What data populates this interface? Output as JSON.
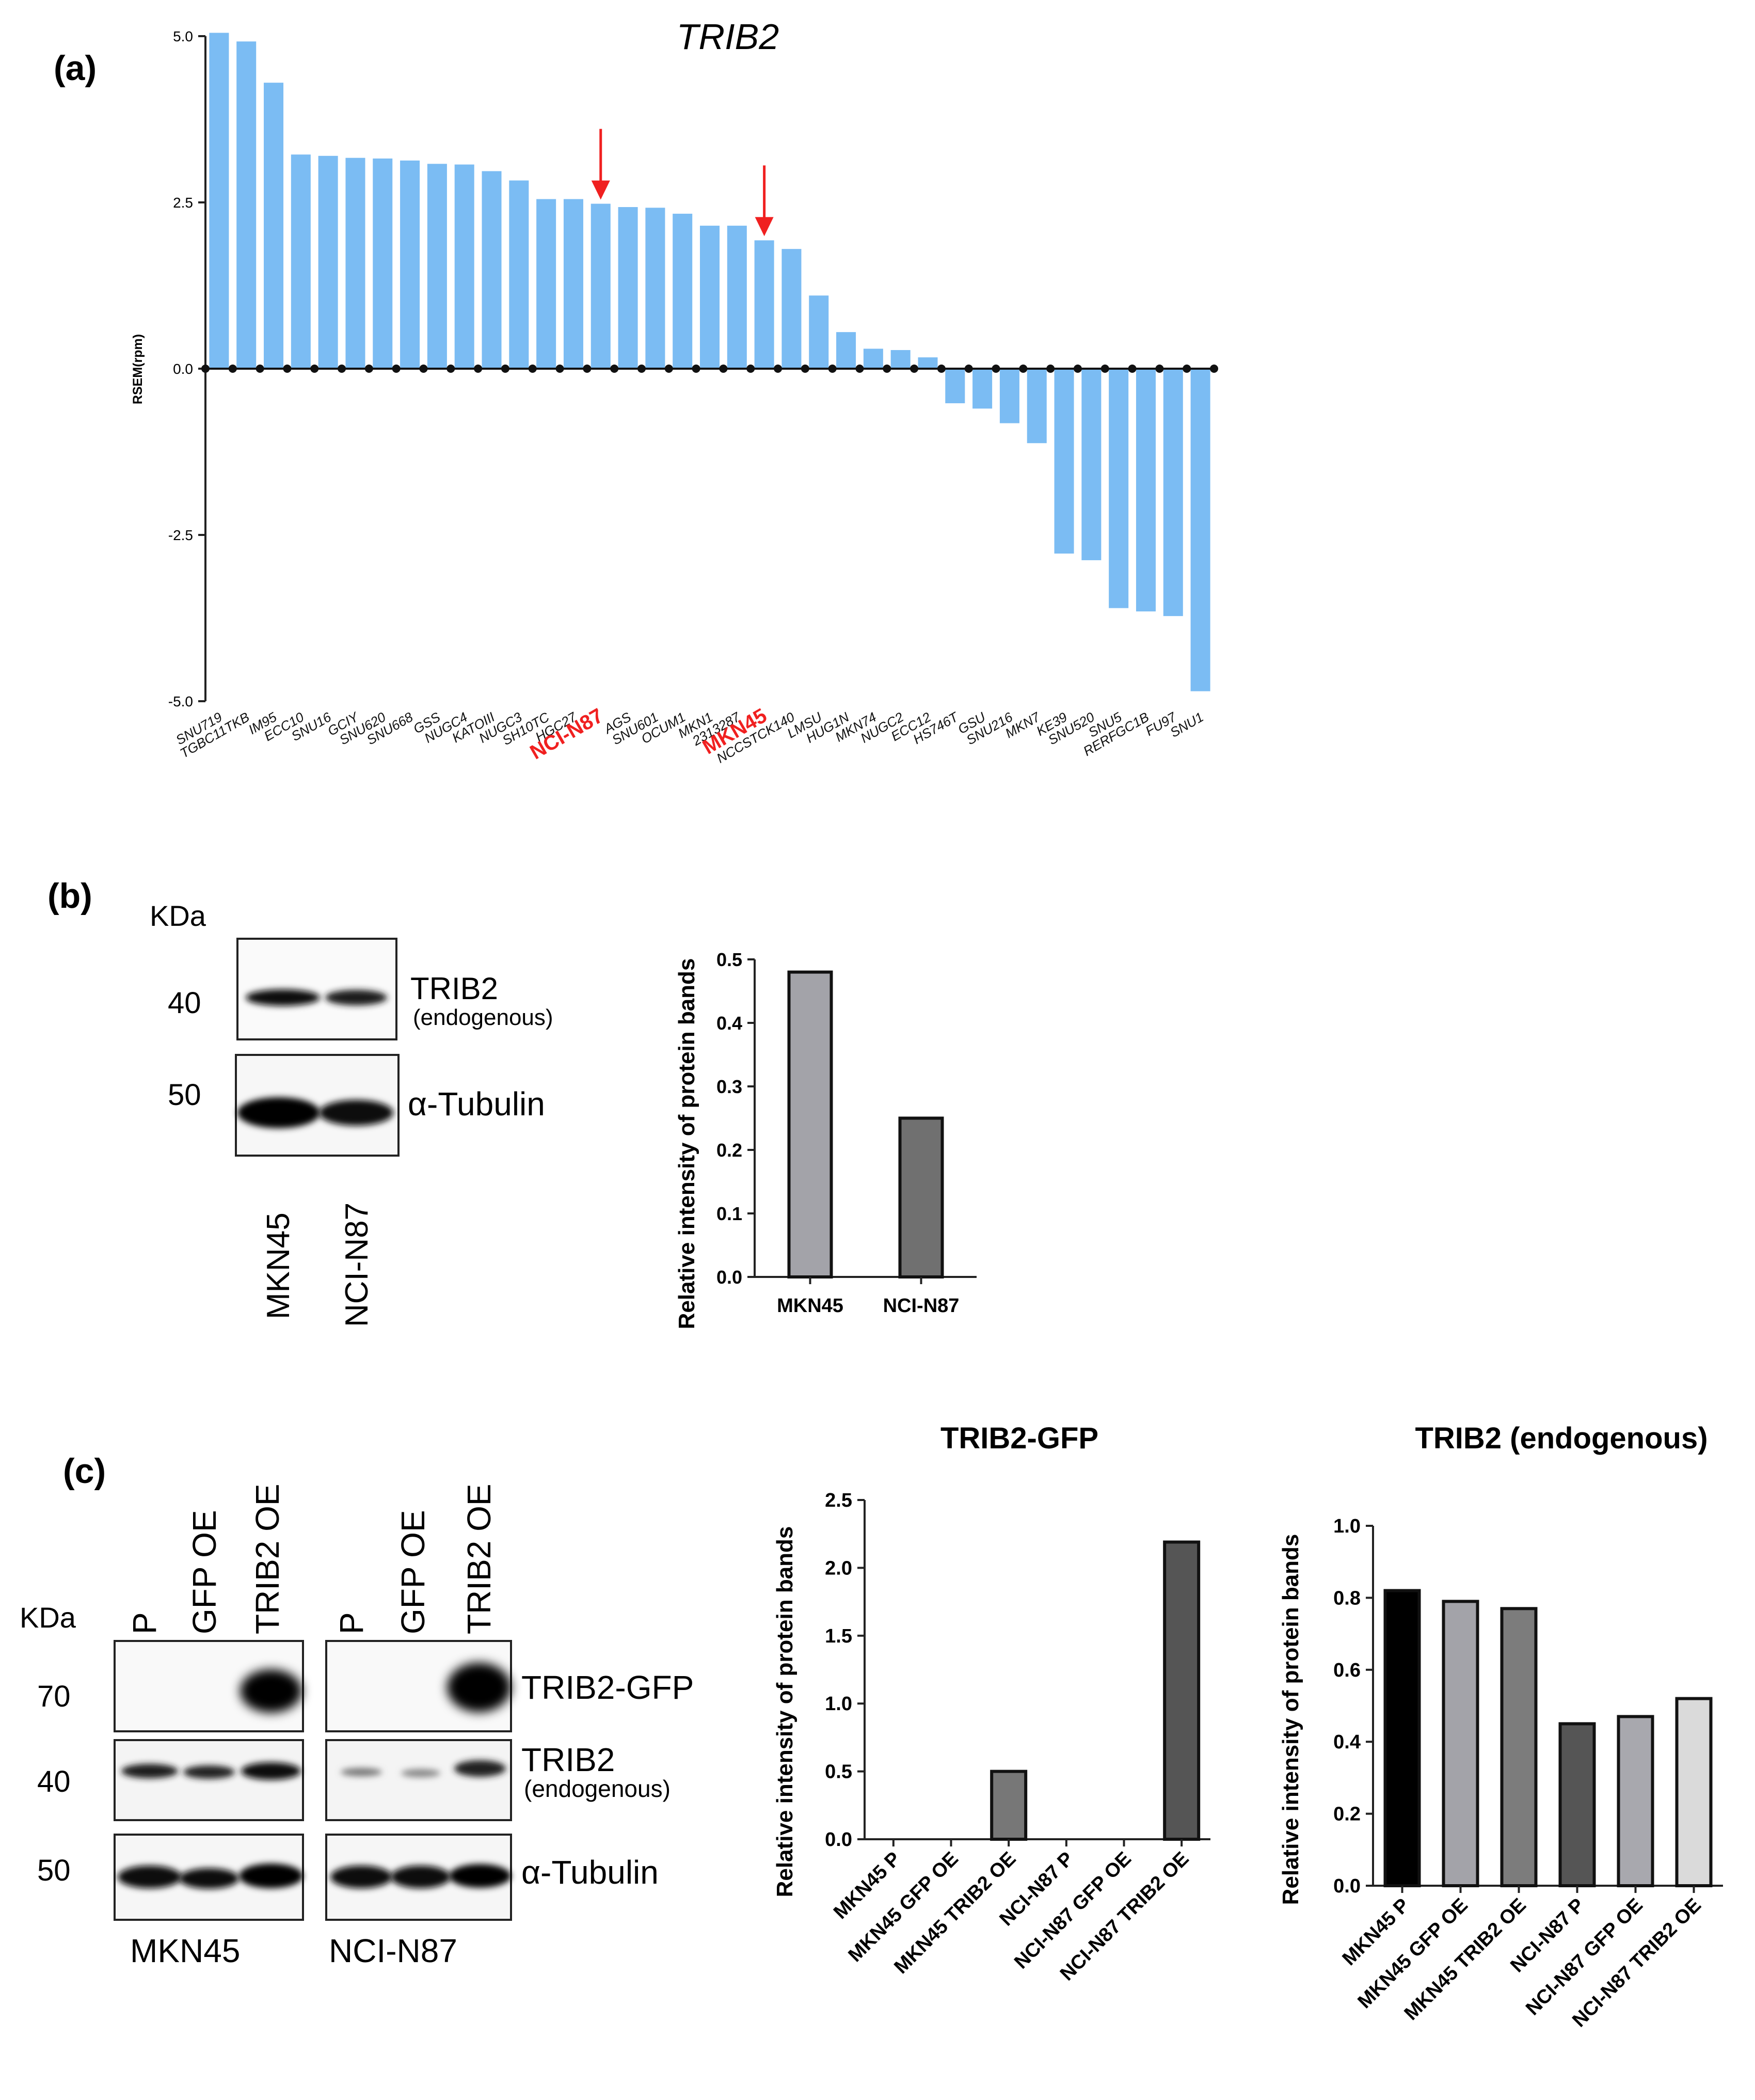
{
  "panels": {
    "a": "(a)",
    "b": "(b)",
    "c": "(c)"
  },
  "chart_data": [
    {
      "id": "chartA",
      "type": "bar",
      "title": "TRIB2",
      "xlabel": "",
      "ylabel": "RSEM(rpm)",
      "ylim": [
        -5.0,
        5.0
      ],
      "yticks": [
        "5.0",
        "2.5",
        "0.0",
        "-2.5",
        "-5.0"
      ],
      "ytick_values": [
        5.0,
        2.5,
        0.0,
        -2.5,
        -5.0
      ],
      "bar_color": "#7bbcf3",
      "highlight_color": "#f02020",
      "highlighted": [
        "NCI-N87",
        "MKN45"
      ],
      "categories": [
        "SNU719",
        "TGBC11TKB",
        "IM95",
        "ECC10",
        "SNU16",
        "GCIY",
        "SNU620",
        "SNU668",
        "GSS",
        "NUGC4",
        "KATOIII",
        "NUGC3",
        "SH10TC",
        "HGC27",
        "NCI-N87",
        "AGS",
        "SNU601",
        "OCUM1",
        "MKN1",
        "2313287",
        "MKN45",
        "NCCSTCK140",
        "LMSU",
        "HUG1N",
        "MKN74",
        "NUGC2",
        "ECC12",
        "HS746T",
        "GSU",
        "SNU216",
        "MKN7",
        "KE39",
        "SNU520",
        "SNU5",
        "RERFGC1B",
        "FU97",
        "SNU1"
      ],
      "values": [
        5.05,
        4.92,
        4.3,
        3.22,
        3.2,
        3.17,
        3.16,
        3.13,
        3.08,
        3.07,
        2.97,
        2.83,
        2.55,
        2.55,
        2.48,
        2.43,
        2.42,
        2.33,
        2.15,
        2.15,
        1.93,
        1.8,
        1.1,
        0.55,
        0.3,
        0.28,
        0.17,
        -0.52,
        -0.6,
        -0.82,
        -1.12,
        -2.78,
        -2.88,
        -3.6,
        -3.65,
        -3.72,
        -4.85
      ]
    },
    {
      "id": "chartB",
      "type": "bar",
      "title": "",
      "xlabel": "",
      "ylabel": "Relative intensity of protein bands",
      "ylim": [
        0,
        0.5
      ],
      "yticks": [
        "0.0",
        "0.1",
        "0.2",
        "0.3",
        "0.4",
        "0.5"
      ],
      "ytick_values": [
        0,
        0.1,
        0.2,
        0.3,
        0.4,
        0.5
      ],
      "categories": [
        "MKN45",
        "NCI-N87"
      ],
      "values": [
        0.48,
        0.25
      ],
      "colors": [
        "#a3a3a9",
        "#707070"
      ]
    },
    {
      "id": "chartC1",
      "type": "bar",
      "title": "TRIB2-GFP",
      "xlabel": "",
      "ylabel": "Relative intensity of protein bands",
      "ylim": [
        0,
        2.5
      ],
      "yticks": [
        "0.0",
        "0.5",
        "1.0",
        "1.5",
        "2.0",
        "2.5"
      ],
      "ytick_values": [
        0,
        0.5,
        1.0,
        1.5,
        2.0,
        2.5
      ],
      "categories": [
        "MKN45 P",
        "MKN45 GFP OE",
        "MKN45 TRIB2 OE",
        "NCI-N87 P",
        "NCI-N87 GFP OE",
        "NCI-N87 TRIB2 OE"
      ],
      "values": [
        0,
        0,
        0.5,
        0,
        0,
        2.19
      ],
      "colors": [
        "#777777",
        "#777777",
        "#777777",
        "#555555",
        "#555555",
        "#555555"
      ]
    },
    {
      "id": "chartC2",
      "type": "bar",
      "title": "TRIB2 (endogenous)",
      "xlabel": "",
      "ylabel": "Relative intensity of protein bands",
      "ylim": [
        0,
        1.0
      ],
      "yticks": [
        "0.0",
        "0.2",
        "0.4",
        "0.6",
        "0.8",
        "1.0"
      ],
      "ytick_values": [
        0,
        0.2,
        0.4,
        0.6,
        0.8,
        1.0
      ],
      "categories": [
        "MKN45 P",
        "MKN45 GFP OE",
        "MKN45 TRIB2 OE",
        "NCI-N87 P",
        "NCI-N87 GFP OE",
        "NCI-N87 TRIB2 OE"
      ],
      "values": [
        0.82,
        0.79,
        0.77,
        0.45,
        0.47,
        0.52
      ],
      "colors": [
        "#000000",
        "#a3a3a9",
        "#7c7c7c",
        "#555555",
        "#a8a8ae",
        "#dadada"
      ]
    }
  ],
  "blot_b": {
    "kda_label": "KDa",
    "rows": [
      {
        "kda": "40",
        "label": "TRIB2",
        "sublabel": "(endogenous)"
      },
      {
        "kda": "50",
        "label": "α-Tubulin",
        "sublabel": ""
      }
    ],
    "lanes": [
      "MKN45",
      "NCI-N87"
    ]
  },
  "blot_c": {
    "kda_label": "KDa",
    "lanes": [
      "P",
      "GFP OE",
      "TRIB2 OE"
    ],
    "groups": [
      "MKN45",
      "NCI-N87"
    ],
    "rows": [
      {
        "kda": "70",
        "label": "TRIB2-GFP",
        "sublabel": ""
      },
      {
        "kda": "40",
        "label": "TRIB2",
        "sublabel": "(endogenous)"
      },
      {
        "kda": "50",
        "label": "α-Tubulin",
        "sublabel": ""
      }
    ]
  }
}
